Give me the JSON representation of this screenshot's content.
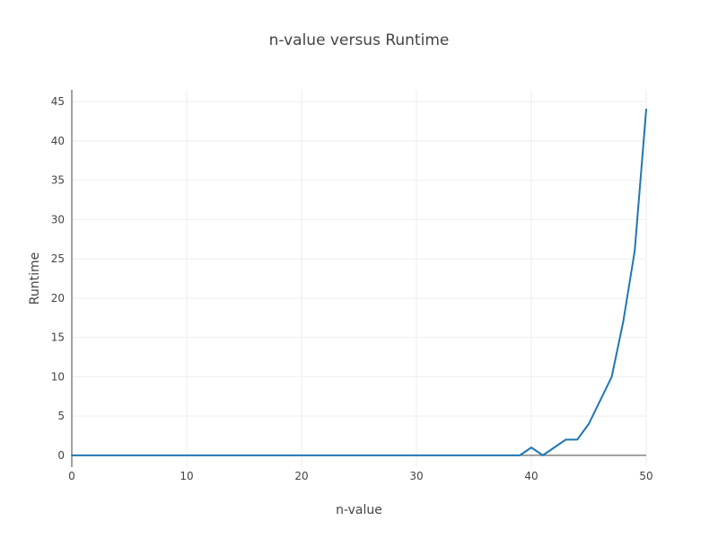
{
  "chart_data": {
    "type": "line",
    "title": "n-value versus Runtime",
    "xlabel": "n-value",
    "ylabel": "Runtime",
    "xlim": [
      0,
      50
    ],
    "ylim": [
      -1.5,
      46.5
    ],
    "x_ticks": [
      0,
      10,
      20,
      30,
      40,
      50
    ],
    "y_ticks": [
      0,
      5,
      10,
      15,
      20,
      25,
      30,
      35,
      40,
      45
    ],
    "grid": true,
    "legend": "none",
    "series": [
      {
        "color": "#1f77b4",
        "x": [
          0,
          1,
          2,
          3,
          4,
          5,
          6,
          7,
          8,
          9,
          10,
          11,
          12,
          13,
          14,
          15,
          16,
          17,
          18,
          19,
          20,
          21,
          22,
          23,
          24,
          25,
          26,
          27,
          28,
          29,
          30,
          31,
          32,
          33,
          34,
          35,
          36,
          37,
          38,
          39,
          40,
          41,
          42,
          43,
          44,
          45,
          46,
          47,
          48,
          49,
          50
        ],
        "values": [
          0,
          0,
          0,
          0,
          0,
          0,
          0,
          0,
          0,
          0,
          0,
          0,
          0,
          0,
          0,
          0,
          0,
          0,
          0,
          0,
          0,
          0,
          0,
          0,
          0,
          0,
          0,
          0,
          0,
          0,
          0,
          0,
          0,
          0,
          0,
          0,
          0,
          0,
          0,
          0,
          1,
          0,
          1,
          2,
          2,
          4,
          7,
          10,
          17,
          26,
          44
        ]
      }
    ]
  }
}
